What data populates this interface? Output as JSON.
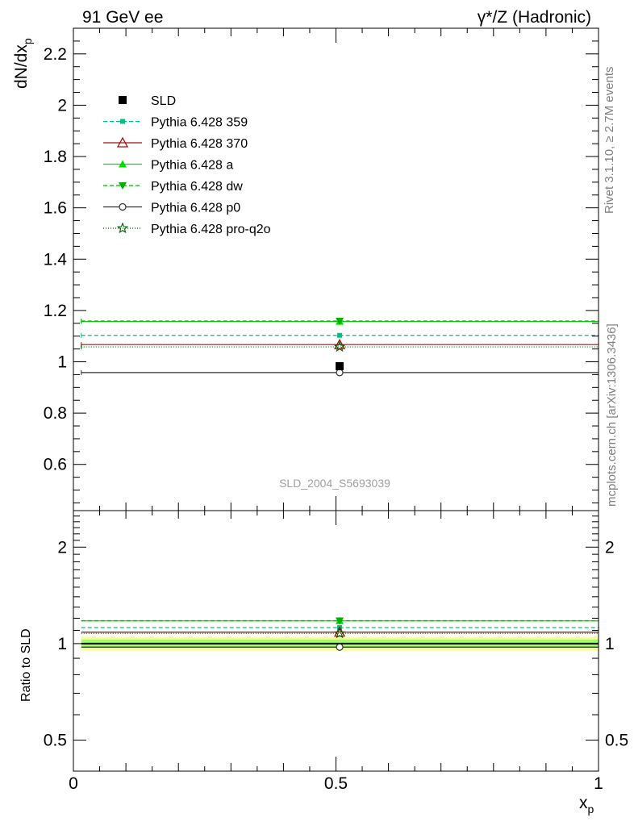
{
  "header": {
    "left": "91 GeV ee",
    "right": "γ*/Z (Hadronic)"
  },
  "side_labels": {
    "rivet": "Rivet 3.1.10, ≥ 2.7M events",
    "mcplots": "mcplots.cern.ch [arXiv:1306.3436]"
  },
  "watermark": "SLD_2004_S5693039",
  "chart_data": [
    {
      "type": "line",
      "panel": "main",
      "ylabel": "dN/dx_p",
      "xlim": [
        0,
        1
      ],
      "ylim": [
        0.42,
        2.3
      ],
      "yticks": [
        0.6,
        0.8,
        1,
        1.2,
        1.4,
        1.6,
        1.8,
        2,
        2.2
      ],
      "ytick_labels": [
        "0.6",
        "0.8",
        "1",
        "1.2",
        "1.4",
        "1.6",
        "1.8",
        "2",
        "2.2"
      ],
      "legend_position": "top-left",
      "data": {
        "name": "SLD",
        "x": 0.507,
        "xerr": [
          0.0,
          1.0
        ],
        "y": 0.983,
        "color": "#000000"
      },
      "series": [
        {
          "name": "Pythia 6.428 359",
          "y": 1.103,
          "x_range": [
            0.015,
            1.0
          ],
          "color": "#00c080",
          "dash": "5,3",
          "marker": "square-small"
        },
        {
          "name": "Pythia 6.428 370",
          "y": 1.067,
          "x_range": [
            0.015,
            1.0
          ],
          "color": "#a01010",
          "dash": "",
          "marker": "triangle-open"
        },
        {
          "name": "Pythia 6.428 a",
          "y": 1.157,
          "x_range": [
            0.015,
            1.0
          ],
          "color": "#00e000",
          "dash": "",
          "marker": "triangle-filled"
        },
        {
          "name": "Pythia 6.428 dw",
          "y": 1.159,
          "x_range": [
            0.015,
            1.0
          ],
          "color": "#00b000",
          "dash": "5,3",
          "marker": "triangle-down-filled"
        },
        {
          "name": "Pythia 6.428 p0",
          "y": 0.958,
          "x_range": [
            0.015,
            1.0
          ],
          "color": "#303030",
          "dash": "",
          "marker": "circle-open"
        },
        {
          "name": "Pythia 6.428 pro-q2o",
          "y": 1.058,
          "x_range": [
            0.015,
            1.0
          ],
          "color": "#006000",
          "dash": "1,2",
          "marker": "star-open"
        }
      ]
    },
    {
      "type": "line",
      "panel": "ratio",
      "ylabel": "Ratio to SLD",
      "xlabel": "x_p",
      "xlim": [
        0,
        1
      ],
      "ylim": [
        0.4,
        2.6
      ],
      "xticks": [
        0,
        0.5,
        1
      ],
      "xtick_labels": [
        "0",
        "0.5",
        "1"
      ],
      "yticks": [
        0.5,
        1,
        2
      ],
      "ytick_labels": [
        "0.5",
        "1",
        "2"
      ],
      "band": {
        "inner": [
          0.97,
          1.03
        ],
        "outer": [
          0.95,
          1.05
        ],
        "inner_color": "#9bff66",
        "outer_color": "#f4ff99"
      },
      "series": [
        {
          "name": "Pythia 6.428 359",
          "y": 1.122
        },
        {
          "name": "Pythia 6.428 370",
          "y": 1.086
        },
        {
          "name": "Pythia 6.428 a",
          "y": 1.177
        },
        {
          "name": "Pythia 6.428 dw",
          "y": 1.179
        },
        {
          "name": "Pythia 6.428 p0",
          "y": 0.975
        },
        {
          "name": "Pythia 6.428 pro-q2o",
          "y": 1.076
        }
      ]
    }
  ]
}
